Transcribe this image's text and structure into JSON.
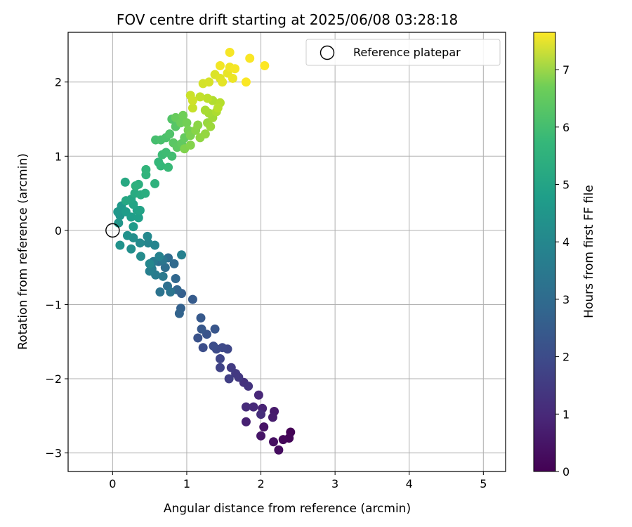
{
  "chart_data": {
    "type": "scatter",
    "title": "FOV centre drift starting at 2025/06/08 03:28:18",
    "xlabel": "Angular distance from reference (arcmin)",
    "ylabel": "Rotation from reference (arcmin)",
    "xlim": [
      -0.6,
      5.3
    ],
    "ylim": [
      -3.25,
      2.67
    ],
    "xticks": [
      0,
      1,
      2,
      3,
      4,
      5
    ],
    "yticks": [
      -3,
      -2,
      -1,
      0,
      1,
      2
    ],
    "xtick_labels": [
      "0",
      "1",
      "2",
      "3",
      "4",
      "5"
    ],
    "ytick_labels": [
      "−3",
      "−2",
      "−1",
      "0",
      "1",
      "2"
    ],
    "grid": true,
    "colormap": "viridis",
    "colorbar": {
      "label": "Hours from first FF file",
      "range": [
        0,
        7.65
      ],
      "ticks": [
        0,
        1,
        2,
        3,
        4,
        5,
        6,
        7
      ],
      "tick_labels": [
        "0",
        "1",
        "2",
        "3",
        "4",
        "5",
        "6",
        "7"
      ]
    },
    "legend": {
      "position": "top-right",
      "entries": [
        "Reference platepar"
      ]
    },
    "reference_point": {
      "x": 0,
      "y": 0
    },
    "points": [
      {
        "x": 2.4,
        "y": -2.72,
        "t": 0.05
      },
      {
        "x": 2.38,
        "y": -2.8,
        "t": 0.1
      },
      {
        "x": 2.3,
        "y": -2.82,
        "t": 0.15
      },
      {
        "x": 2.24,
        "y": -2.96,
        "t": 0.25
      },
      {
        "x": 2.17,
        "y": -2.85,
        "t": 0.3
      },
      {
        "x": 2.04,
        "y": -2.65,
        "t": 0.4
      },
      {
        "x": 2.0,
        "y": -2.77,
        "t": 0.45
      },
      {
        "x": 2.18,
        "y": -2.44,
        "t": 0.55
      },
      {
        "x": 2.16,
        "y": -2.52,
        "t": 0.6
      },
      {
        "x": 1.8,
        "y": -2.58,
        "t": 0.7
      },
      {
        "x": 2.02,
        "y": -2.4,
        "t": 0.75
      },
      {
        "x": 1.97,
        "y": -2.22,
        "t": 0.85
      },
      {
        "x": 1.9,
        "y": -2.38,
        "t": 0.9
      },
      {
        "x": 1.8,
        "y": -2.38,
        "t": 0.95
      },
      {
        "x": 2.0,
        "y": -2.48,
        "t": 1.0
      },
      {
        "x": 1.77,
        "y": -2.05,
        "t": 1.1
      },
      {
        "x": 1.83,
        "y": -2.1,
        "t": 1.15
      },
      {
        "x": 1.7,
        "y": -1.98,
        "t": 1.25
      },
      {
        "x": 1.66,
        "y": -1.93,
        "t": 1.3
      },
      {
        "x": 1.6,
        "y": -1.85,
        "t": 1.35
      },
      {
        "x": 1.57,
        "y": -2.0,
        "t": 1.45
      },
      {
        "x": 1.45,
        "y": -1.85,
        "t": 1.55
      },
      {
        "x": 1.45,
        "y": -1.73,
        "t": 1.6
      },
      {
        "x": 1.55,
        "y": -1.6,
        "t": 1.65
      },
      {
        "x": 1.48,
        "y": -1.58,
        "t": 1.7
      },
      {
        "x": 1.4,
        "y": -1.6,
        "t": 1.75
      },
      {
        "x": 1.36,
        "y": -1.56,
        "t": 1.8
      },
      {
        "x": 1.22,
        "y": -1.58,
        "t": 1.85
      },
      {
        "x": 1.15,
        "y": -1.45,
        "t": 1.95
      },
      {
        "x": 1.27,
        "y": -1.4,
        "t": 2.0
      },
      {
        "x": 1.38,
        "y": -1.33,
        "t": 2.05
      },
      {
        "x": 1.2,
        "y": -1.33,
        "t": 2.1
      },
      {
        "x": 1.19,
        "y": -1.18,
        "t": 2.15
      },
      {
        "x": 1.08,
        "y": -0.93,
        "t": 2.2
      },
      {
        "x": 0.93,
        "y": -0.85,
        "t": 2.3
      },
      {
        "x": 0.92,
        "y": -1.05,
        "t": 2.35
      },
      {
        "x": 0.9,
        "y": -1.12,
        "t": 2.45
      },
      {
        "x": 0.87,
        "y": -0.8,
        "t": 2.5
      },
      {
        "x": 0.85,
        "y": -0.65,
        "t": 2.55
      },
      {
        "x": 0.83,
        "y": -0.45,
        "t": 2.6
      },
      {
        "x": 0.75,
        "y": -0.37,
        "t": 2.7
      },
      {
        "x": 0.71,
        "y": -0.5,
        "t": 2.75
      },
      {
        "x": 0.74,
        "y": -0.75,
        "t": 2.8
      },
      {
        "x": 0.62,
        "y": -0.42,
        "t": 2.85
      },
      {
        "x": 0.64,
        "y": -0.83,
        "t": 2.9
      },
      {
        "x": 0.78,
        "y": -0.83,
        "t": 2.95
      },
      {
        "x": 0.68,
        "y": -0.4,
        "t": 3.0
      },
      {
        "x": 0.68,
        "y": -0.62,
        "t": 3.1
      },
      {
        "x": 0.55,
        "y": -0.42,
        "t": 3.15
      },
      {
        "x": 0.58,
        "y": -0.6,
        "t": 3.2
      },
      {
        "x": 0.53,
        "y": -0.52,
        "t": 3.25
      },
      {
        "x": 0.5,
        "y": -0.55,
        "t": 3.3
      },
      {
        "x": 0.93,
        "y": -0.33,
        "t": 3.35
      },
      {
        "x": 0.63,
        "y": -0.35,
        "t": 3.4
      },
      {
        "x": 0.57,
        "y": -0.2,
        "t": 3.45
      },
      {
        "x": 0.48,
        "y": -0.17,
        "t": 3.5
      },
      {
        "x": 0.5,
        "y": -0.45,
        "t": 3.55
      },
      {
        "x": 0.47,
        "y": -0.08,
        "t": 3.6
      },
      {
        "x": 0.37,
        "y": -0.17,
        "t": 3.65
      },
      {
        "x": 0.38,
        "y": -0.35,
        "t": 3.7
      },
      {
        "x": 0.28,
        "y": -0.1,
        "t": 3.75
      },
      {
        "x": 0.25,
        "y": -0.25,
        "t": 3.8
      },
      {
        "x": 0.2,
        "y": -0.07,
        "t": 3.85
      },
      {
        "x": 0.1,
        "y": -0.2,
        "t": 3.9
      },
      {
        "x": 0.1,
        "y": 0.2,
        "t": 3.95
      },
      {
        "x": 0.08,
        "y": 0.1,
        "t": 4.0
      },
      {
        "x": 0.07,
        "y": 0.25,
        "t": 4.05
      },
      {
        "x": 0.12,
        "y": 0.33,
        "t": 4.1
      },
      {
        "x": 0.28,
        "y": 0.05,
        "t": 4.15
      },
      {
        "x": 0.18,
        "y": 0.25,
        "t": 4.2
      },
      {
        "x": 0.25,
        "y": 0.18,
        "t": 4.25
      },
      {
        "x": 0.35,
        "y": 0.17,
        "t": 4.3
      },
      {
        "x": 0.33,
        "y": 0.27,
        "t": 4.35
      },
      {
        "x": 0.37,
        "y": 0.27,
        "t": 4.4
      },
      {
        "x": 0.28,
        "y": 0.35,
        "t": 4.45
      },
      {
        "x": 0.25,
        "y": 0.42,
        "t": 4.5
      },
      {
        "x": 0.18,
        "y": 0.4,
        "t": 4.55
      },
      {
        "x": 0.17,
        "y": 0.65,
        "t": 4.6
      },
      {
        "x": 0.3,
        "y": 0.5,
        "t": 4.65
      },
      {
        "x": 0.38,
        "y": 0.48,
        "t": 4.7
      },
      {
        "x": 0.44,
        "y": 0.5,
        "t": 4.75
      },
      {
        "x": 0.35,
        "y": 0.62,
        "t": 4.8
      },
      {
        "x": 0.31,
        "y": 0.6,
        "t": 4.85
      },
      {
        "x": 0.57,
        "y": 0.63,
        "t": 4.9
      },
      {
        "x": 0.45,
        "y": 0.75,
        "t": 4.95
      },
      {
        "x": 0.45,
        "y": 0.82,
        "t": 5.0
      },
      {
        "x": 0.62,
        "y": 0.92,
        "t": 5.05
      },
      {
        "x": 0.65,
        "y": 0.87,
        "t": 5.1
      },
      {
        "x": 0.75,
        "y": 0.85,
        "t": 5.15
      },
      {
        "x": 0.67,
        "y": 1.02,
        "t": 5.2
      },
      {
        "x": 0.72,
        "y": 1.05,
        "t": 5.25
      },
      {
        "x": 0.8,
        "y": 1.0,
        "t": 5.3
      },
      {
        "x": 0.58,
        "y": 1.22,
        "t": 5.35
      },
      {
        "x": 0.65,
        "y": 1.22,
        "t": 5.4
      },
      {
        "x": 0.72,
        "y": 1.25,
        "t": 5.45
      },
      {
        "x": 0.77,
        "y": 1.3,
        "t": 5.5
      },
      {
        "x": 0.8,
        "y": 1.5,
        "t": 5.55
      },
      {
        "x": 0.85,
        "y": 1.4,
        "t": 5.6
      },
      {
        "x": 0.82,
        "y": 1.18,
        "t": 5.65
      },
      {
        "x": 0.87,
        "y": 1.12,
        "t": 5.7
      },
      {
        "x": 0.93,
        "y": 1.17,
        "t": 5.75
      },
      {
        "x": 0.97,
        "y": 1.25,
        "t": 5.8
      },
      {
        "x": 0.85,
        "y": 1.52,
        "t": 5.85
      },
      {
        "x": 0.92,
        "y": 1.45,
        "t": 5.9
      },
      {
        "x": 0.95,
        "y": 1.55,
        "t": 5.95
      },
      {
        "x": 1.0,
        "y": 1.45,
        "t": 6.0
      },
      {
        "x": 1.02,
        "y": 1.35,
        "t": 6.05
      },
      {
        "x": 1.05,
        "y": 1.28,
        "t": 6.1
      },
      {
        "x": 0.97,
        "y": 1.1,
        "t": 6.15
      },
      {
        "x": 1.05,
        "y": 1.15,
        "t": 6.2
      },
      {
        "x": 1.12,
        "y": 1.35,
        "t": 6.25
      },
      {
        "x": 1.15,
        "y": 1.42,
        "t": 6.3
      },
      {
        "x": 1.18,
        "y": 1.25,
        "t": 6.35
      },
      {
        "x": 1.25,
        "y": 1.3,
        "t": 6.4
      },
      {
        "x": 1.28,
        "y": 1.45,
        "t": 6.45
      },
      {
        "x": 1.32,
        "y": 1.4,
        "t": 6.5
      },
      {
        "x": 1.35,
        "y": 1.52,
        "t": 6.55
      },
      {
        "x": 1.3,
        "y": 1.58,
        "t": 6.6
      },
      {
        "x": 1.25,
        "y": 1.62,
        "t": 6.65
      },
      {
        "x": 1.4,
        "y": 1.6,
        "t": 6.7
      },
      {
        "x": 1.35,
        "y": 1.75,
        "t": 6.75
      },
      {
        "x": 1.45,
        "y": 1.72,
        "t": 6.8
      },
      {
        "x": 1.42,
        "y": 1.65,
        "t": 6.85
      },
      {
        "x": 1.28,
        "y": 1.78,
        "t": 6.9
      },
      {
        "x": 1.18,
        "y": 1.8,
        "t": 6.95
      },
      {
        "x": 1.08,
        "y": 1.65,
        "t": 7.0
      },
      {
        "x": 1.05,
        "y": 1.82,
        "t": 7.05
      },
      {
        "x": 1.08,
        "y": 1.75,
        "t": 7.1
      },
      {
        "x": 1.22,
        "y": 1.98,
        "t": 7.15
      },
      {
        "x": 1.3,
        "y": 2.0,
        "t": 7.2
      },
      {
        "x": 1.38,
        "y": 2.1,
        "t": 7.25
      },
      {
        "x": 1.45,
        "y": 2.05,
        "t": 7.3
      },
      {
        "x": 1.48,
        "y": 2.0,
        "t": 7.35
      },
      {
        "x": 1.55,
        "y": 2.12,
        "t": 7.4
      },
      {
        "x": 1.62,
        "y": 2.05,
        "t": 7.45
      },
      {
        "x": 1.58,
        "y": 2.2,
        "t": 7.5
      },
      {
        "x": 1.45,
        "y": 2.22,
        "t": 7.52
      },
      {
        "x": 1.65,
        "y": 2.18,
        "t": 7.55
      },
      {
        "x": 1.58,
        "y": 2.4,
        "t": 7.57
      },
      {
        "x": 1.85,
        "y": 2.32,
        "t": 7.6
      },
      {
        "x": 1.8,
        "y": 2.0,
        "t": 7.62
      },
      {
        "x": 2.05,
        "y": 2.22,
        "t": 7.64
      }
    ]
  }
}
